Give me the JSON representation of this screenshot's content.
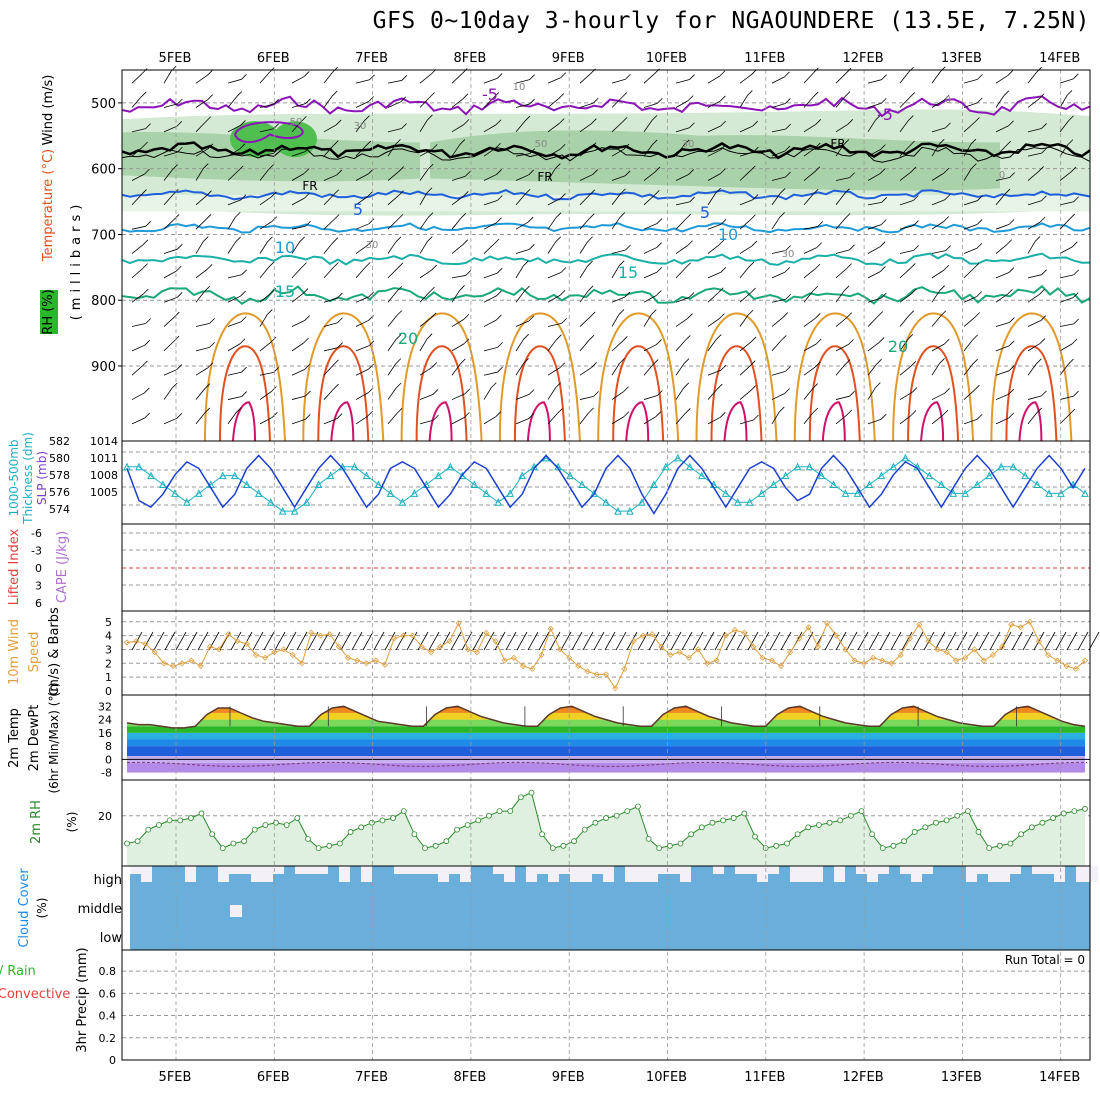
{
  "title": "GFS 0~10day 3-hourly for NGAOUNDERE (13.5E, 7.25N)",
  "days": [
    "5FEB",
    "6FEB",
    "7FEB",
    "8FEB",
    "9FEB",
    "10FEB",
    "11FEB",
    "12FEB",
    "13FEB",
    "14FEB"
  ],
  "colors": {
    "grid": "#999999",
    "rh_fill": "#cfe8cf",
    "rh_fill2": "#9fcc9f",
    "rh_fill3": "#4fbf4f",
    "temp_neg5": "#8b14b8",
    "temp_5": "#1f5fdc",
    "temp_10": "#1f9ad8",
    "temp_15": "#1ab0a8",
    "temp_20": "#1aa87a",
    "temp_warm": "#e09a2a",
    "temp_hot": "#e05020",
    "temp_red": "#d0106a",
    "slp": "#1a3fd0",
    "thick": "#1ab0c0",
    "wind": "#e0a040",
    "rh2m": "#2a8a2a",
    "cloud": "#6aaedb"
  },
  "panels": {
    "upper": {
      "ylabel_wind": "Wind (m/s)",
      "ylabel_temp": "Temperature (°C)",
      "ylabel_rh": "RH (%)",
      "ylabel_unit": "(millibars)",
      "yticks": [
        "500",
        "600",
        "700",
        "800",
        "900"
      ],
      "contour_labels": [
        "-5",
        "-5",
        "5",
        "5",
        "10",
        "10",
        "15",
        "15",
        "20",
        "20",
        "FR",
        "FR",
        "FR",
        "30",
        "30",
        "30",
        "50",
        "50",
        "0",
        "10",
        "0",
        "30"
      ]
    },
    "slp": {
      "ylabel_thick": "Thickness (dm)",
      "ylabel_thick2": "1000-500mb",
      "ylabel_slp": "SLP (mb)",
      "left_ticks": [
        "582",
        "580",
        "578",
        "576",
        "574"
      ],
      "right_ticks": [
        "1014",
        "1011",
        "1008",
        "1005"
      ]
    },
    "cape": {
      "ylabel_li": "Lifted Index",
      "ylabel_cape": "CAPE (J/kg)",
      "yticks": [
        "-6",
        "-3",
        "0",
        "3",
        "6"
      ]
    },
    "wind10": {
      "ylabel_1": "10m Wind",
      "ylabel_2": "Speed",
      "ylabel_3": "(m/s) & Barbs",
      "yticks": [
        "5",
        "4",
        "3",
        "2",
        "1",
        "0"
      ]
    },
    "temp2m": {
      "ylabel_1": "2m Temp",
      "ylabel_2": "2m DewPt",
      "ylabel_3": "(6hr Min/Max) (°C)",
      "yticks": [
        "32",
        "24",
        "16",
        "8",
        "0",
        "-8"
      ]
    },
    "rh2m": {
      "ylabel_1": "2m RH",
      "ylabel_2": "(%)",
      "yticks": [
        "20"
      ]
    },
    "cloud": {
      "ylabel_1": "Cloud Cover",
      "ylabel_2": "(%)",
      "levels": [
        "high",
        "middle",
        "low"
      ]
    },
    "precip": {
      "ylabel_1": "Total / Rain",
      "ylabel_2": "Convective",
      "ylabel_3": "3hr Precip (mm)",
      "run_total": "Run Total = 0",
      "yticks": [
        "0.8",
        "0.6",
        "0.4",
        "0.2",
        "0"
      ]
    }
  },
  "chart_data": [
    {
      "type": "line",
      "title": "SLP (mb) and 1000-500mb Thickness (dm)",
      "series": [
        {
          "name": "SLP (mb)",
          "values": [
            1011,
            1006,
            1005,
            1007,
            1010,
            1012,
            1011,
            1008,
            1005,
            1007,
            1011,
            1013,
            1011,
            1008,
            1005,
            1008,
            1011,
            1013,
            1011,
            1008,
            1005,
            1007,
            1011,
            1012,
            1011,
            1008,
            1005,
            1007,
            1010,
            1012,
            1011,
            1008,
            1005,
            1007,
            1011,
            1013,
            1011,
            1008,
            1005,
            1007,
            1011,
            1013,
            1011,
            1007,
            1004,
            1007,
            1011,
            1013,
            1011,
            1008,
            1005,
            1008,
            1011,
            1012,
            1011,
            1008,
            1006,
            1007,
            1011,
            1013,
            1011,
            1008,
            1005,
            1007,
            1010,
            1012,
            1011,
            1008,
            1005,
            1008,
            1011,
            1013,
            1011,
            1008,
            1005,
            1008,
            1011,
            1013,
            1011,
            1008,
            1011
          ]
        },
        {
          "name": "Thickness (dm)",
          "values": [
            580,
            580,
            579,
            578,
            577,
            576,
            577,
            578,
            579,
            579,
            578,
            577,
            576,
            575,
            575,
            576,
            578,
            579,
            580,
            580,
            579,
            578,
            577,
            576,
            577,
            578,
            579,
            580,
            579,
            578,
            577,
            576,
            577,
            579,
            580,
            581,
            580,
            579,
            578,
            577,
            576,
            575,
            575,
            576,
            578,
            580,
            581,
            580,
            579,
            578,
            577,
            576,
            576,
            577,
            578,
            579,
            580,
            580,
            579,
            578,
            577,
            577,
            578,
            579,
            580,
            581,
            580,
            579,
            578,
            577,
            577,
            578,
            579,
            580,
            580,
            579,
            578,
            577,
            577,
            578,
            577
          ]
        }
      ]
    },
    {
      "type": "line",
      "title": "10m Wind Speed (m/s)",
      "series": [
        {
          "name": "10m Wind Speed",
          "values": [
            3.5,
            3.6,
            3.4,
            2.8,
            2.0,
            1.8,
            2.0,
            2.2,
            1.8,
            3.2,
            3.0,
            4.1,
            3.6,
            3.4,
            2.6,
            2.4,
            2.8,
            3.0,
            2.6,
            2.0,
            4.2,
            4.0,
            4.1,
            3.2,
            2.4,
            2.2,
            2.0,
            2.2,
            1.9,
            3.8,
            4.0,
            4.0,
            3.2,
            2.8,
            3.2,
            3.6,
            4.9,
            3.0,
            2.8,
            4.2,
            3.6,
            2.2,
            2.4,
            1.8,
            1.6,
            2.6,
            4.5,
            3.0,
            2.4,
            1.8,
            1.4,
            1.2,
            1.2,
            0.2,
            1.6,
            3.6,
            4.0,
            4.1,
            3.2,
            2.6,
            2.8,
            2.4,
            3.0,
            2.0,
            2.2,
            4.0,
            4.4,
            4.2,
            3.2,
            2.4,
            2.2,
            1.8,
            2.8,
            3.8,
            4.6,
            3.2,
            4.9,
            4.0,
            3.0,
            2.2,
            2.0,
            2.4,
            2.2,
            2.0,
            2.6,
            3.8,
            4.8,
            3.6,
            3.0,
            2.8,
            2.2,
            2.4,
            3.0,
            2.2,
            2.6,
            3.2,
            4.8,
            4.6,
            5.0,
            3.6,
            2.6,
            2.2,
            1.8,
            1.6,
            2.2
          ]
        }
      ]
    },
    {
      "type": "area",
      "title": "2m Temp (°C)",
      "series": [
        {
          "name": "2m Temp",
          "values": [
            22,
            21,
            21,
            20,
            19,
            19,
            20,
            27,
            31,
            31,
            28,
            25,
            23,
            22,
            21,
            20,
            20,
            27,
            31,
            32,
            29,
            26,
            23,
            22,
            21,
            20,
            20,
            27,
            31,
            32,
            29,
            26,
            24,
            22,
            21,
            20,
            20,
            27,
            31,
            32,
            29,
            26,
            24,
            22,
            21,
            20,
            20,
            27,
            31,
            32,
            29,
            26,
            24,
            22,
            21,
            20,
            20,
            27,
            31,
            32,
            29,
            26,
            24,
            22,
            21,
            20,
            20,
            27,
            31,
            32,
            29,
            26,
            24,
            22,
            21,
            20,
            20,
            27,
            31,
            32,
            29,
            26,
            23,
            21,
            20
          ]
        }
      ]
    },
    {
      "type": "line",
      "title": "2m RH (%)",
      "series": [
        {
          "name": "2m RH",
          "values": [
            8,
            9,
            14,
            16,
            18,
            18,
            19,
            21,
            12,
            6,
            8,
            9,
            14,
            16,
            17,
            16,
            19,
            10,
            6,
            7,
            8,
            13,
            15,
            17,
            18,
            19,
            22,
            12,
            6,
            7,
            9,
            14,
            16,
            18,
            20,
            22,
            22,
            28,
            30,
            12,
            6,
            7,
            9,
            14,
            17,
            19,
            20,
            22,
            24,
            10,
            6,
            7,
            8,
            12,
            15,
            17,
            18,
            19,
            21,
            11,
            6,
            7,
            8,
            12,
            15,
            16,
            17,
            18,
            20,
            22,
            12,
            6,
            7,
            9,
            13,
            15,
            17,
            18,
            20,
            22,
            13,
            6,
            7,
            8,
            12,
            15,
            17,
            19,
            21,
            22,
            23
          ]
        }
      ]
    }
  ]
}
